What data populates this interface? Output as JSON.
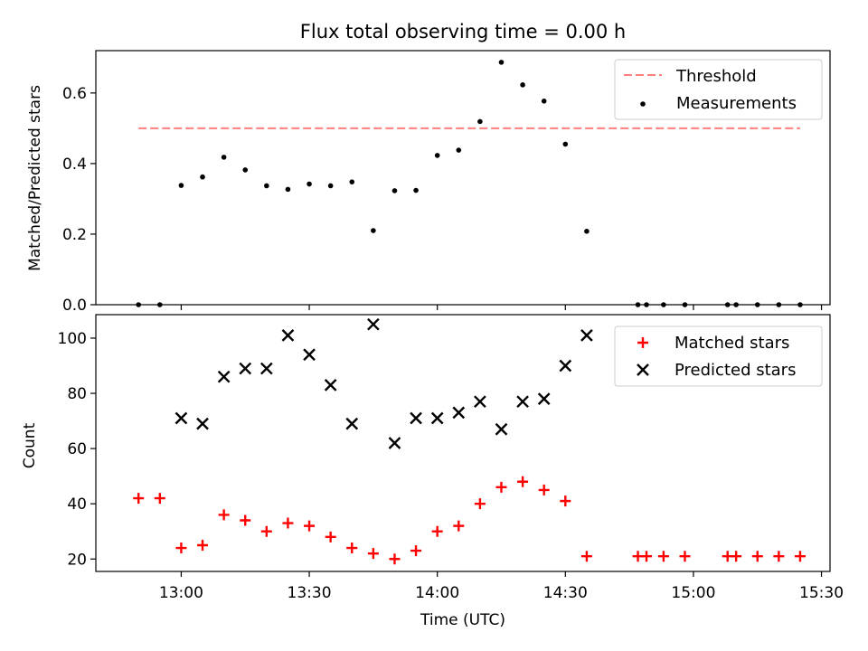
{
  "chart_data": [
    {
      "type": "scatter",
      "title": "Flux total observing time = 0.00 h",
      "ylabel": "Matched/Predicted stars",
      "xlabel": "",
      "xlim": [
        "12:40",
        "15:32"
      ],
      "ylim": [
        0,
        0.72
      ],
      "yticks": [
        "0.0",
        "0.2",
        "0.4",
        "0.6"
      ],
      "legend_position": "top-right",
      "legend": [
        "Threshold",
        "Measurements"
      ],
      "threshold": {
        "name": "Threshold",
        "y": 0.5,
        "x_start": "12:50",
        "x_end": "15:25",
        "color": "#ff7f7f",
        "style": "dashed"
      },
      "series": [
        {
          "name": "Measurements",
          "color": "#000000",
          "marker": "dot",
          "points": [
            [
              "12:50",
              0.0
            ],
            [
              "12:55",
              0.0
            ],
            [
              "13:00",
              0.338
            ],
            [
              "13:05",
              0.362
            ],
            [
              "13:10",
              0.418
            ],
            [
              "13:15",
              0.382
            ],
            [
              "13:20",
              0.337
            ],
            [
              "13:25",
              0.327
            ],
            [
              "13:30",
              0.342
            ],
            [
              "13:35",
              0.337
            ],
            [
              "13:40",
              0.348
            ],
            [
              "13:45",
              0.21
            ],
            [
              "13:50",
              0.323
            ],
            [
              "13:55",
              0.324
            ],
            [
              "14:00",
              0.423
            ],
            [
              "14:05",
              0.438
            ],
            [
              "14:10",
              0.519
            ],
            [
              "14:15",
              0.687
            ],
            [
              "14:20",
              0.623
            ],
            [
              "14:25",
              0.577
            ],
            [
              "14:30",
              0.455
            ],
            [
              "14:35",
              0.208
            ],
            [
              "14:47",
              0.0
            ],
            [
              "14:49",
              0.0
            ],
            [
              "14:53",
              0.0
            ],
            [
              "14:58",
              0.0
            ],
            [
              "15:08",
              0.0
            ],
            [
              "15:10",
              0.0
            ],
            [
              "15:15",
              0.0
            ],
            [
              "15:20",
              0.0
            ],
            [
              "15:25",
              0.0
            ]
          ]
        }
      ]
    },
    {
      "type": "scatter",
      "title": "",
      "xlabel": "Time (UTC)",
      "ylabel": "Count",
      "xlim": [
        "12:40",
        "15:32"
      ],
      "ylim": [
        15.5,
        108.5
      ],
      "xticks": [
        "13:00",
        "13:30",
        "14:00",
        "14:30",
        "15:00",
        "15:30"
      ],
      "yticks": [
        "20",
        "40",
        "60",
        "80",
        "100"
      ],
      "legend_position": "top-right",
      "legend": [
        "Matched stars",
        "Predicted stars"
      ],
      "series": [
        {
          "name": "Matched stars",
          "color": "#ff0000",
          "marker": "plus",
          "points": [
            [
              "12:50",
              42
            ],
            [
              "12:55",
              42
            ],
            [
              "13:00",
              24
            ],
            [
              "13:05",
              25
            ],
            [
              "13:10",
              36
            ],
            [
              "13:15",
              34
            ],
            [
              "13:20",
              30
            ],
            [
              "13:25",
              33
            ],
            [
              "13:30",
              32
            ],
            [
              "13:35",
              28
            ],
            [
              "13:40",
              24
            ],
            [
              "13:45",
              22
            ],
            [
              "13:50",
              20
            ],
            [
              "13:55",
              23
            ],
            [
              "14:00",
              30
            ],
            [
              "14:05",
              32
            ],
            [
              "14:10",
              40
            ],
            [
              "14:15",
              46
            ],
            [
              "14:20",
              48
            ],
            [
              "14:25",
              45
            ],
            [
              "14:30",
              41
            ],
            [
              "14:35",
              21
            ],
            [
              "14:47",
              21
            ],
            [
              "14:49",
              21
            ],
            [
              "14:53",
              21
            ],
            [
              "14:58",
              21
            ],
            [
              "15:08",
              21
            ],
            [
              "15:10",
              21
            ],
            [
              "15:15",
              21
            ],
            [
              "15:20",
              21
            ],
            [
              "15:25",
              21
            ]
          ]
        },
        {
          "name": "Predicted stars",
          "color": "#000000",
          "marker": "x",
          "points": [
            [
              "13:00",
              71
            ],
            [
              "13:05",
              69
            ],
            [
              "13:10",
              86
            ],
            [
              "13:15",
              89
            ],
            [
              "13:20",
              89
            ],
            [
              "13:25",
              101
            ],
            [
              "13:30",
              94
            ],
            [
              "13:35",
              83
            ],
            [
              "13:40",
              69
            ],
            [
              "13:45",
              105
            ],
            [
              "13:50",
              62
            ],
            [
              "13:55",
              71
            ],
            [
              "14:00",
              71
            ],
            [
              "14:05",
              73
            ],
            [
              "14:10",
              77
            ],
            [
              "14:15",
              67
            ],
            [
              "14:20",
              77
            ],
            [
              "14:25",
              78
            ],
            [
              "14:30",
              90
            ],
            [
              "14:35",
              101
            ]
          ]
        }
      ]
    }
  ]
}
